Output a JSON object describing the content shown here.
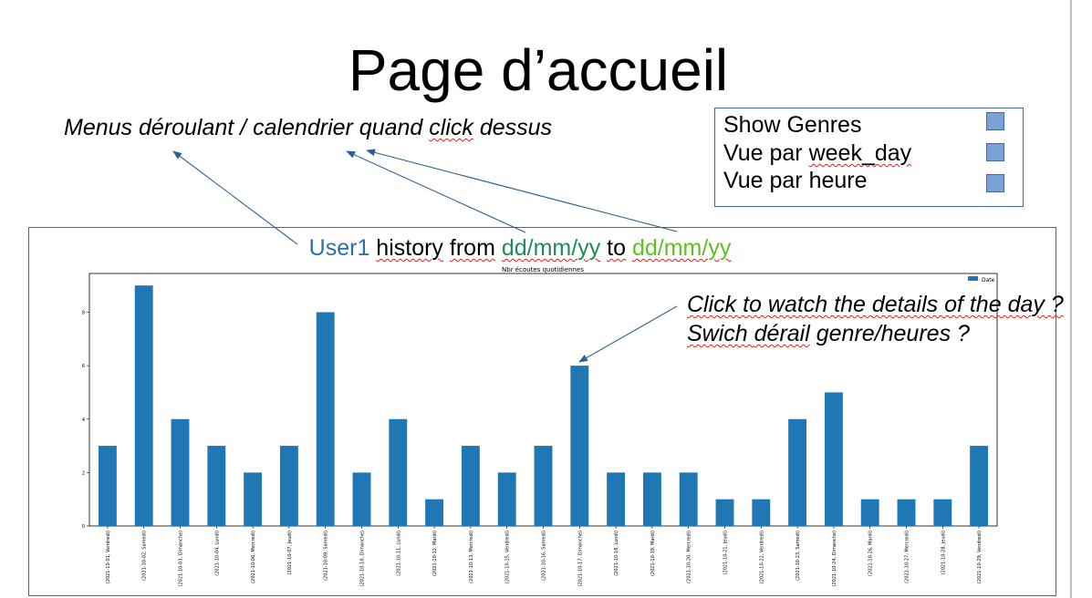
{
  "title": "Page d’accueil",
  "menus_note": {
    "before": "Menus déroulant / calendrier quand ",
    "click": "click",
    "after": " dessus"
  },
  "options": [
    {
      "label_start": "Show Genres",
      "label_wavy": ""
    },
    {
      "label_start": "Vue par ",
      "label_wavy": "week_day"
    },
    {
      "label_start": "Vue par heure",
      "label_wavy": ""
    }
  ],
  "history": {
    "user": "User1",
    "history_word": "history",
    "from_word": "from",
    "date_from": "dd/mm/yy",
    "to_word": "to",
    "date_to": "dd/mm/yy"
  },
  "details_note": {
    "line1": "Click to watch the details of the day ?",
    "line2_start": "Swich ",
    "line2_wavy": "dérail",
    "line2_end": " genre/heures ?"
  },
  "colors": {
    "user": "#2e6fa7",
    "date_from": "#1f8a5a",
    "date_to": "#62c022",
    "bar": "#1f77b4",
    "frame": "#3a6b9c",
    "arrow": "#2f5f94"
  },
  "chart_data": {
    "type": "bar",
    "title": "Nbr écoutes quotidiennes",
    "legend": "Date",
    "legend_position": "top-right",
    "ylim": [
      0,
      9.45
    ],
    "yticks": [
      0,
      2,
      4,
      6,
      8
    ],
    "categories": [
      "(2021-10-01, Vendredi)",
      "(2021-10-02, Samedi)",
      "(2021-10-03, Dimanche)",
      "(2021-10-04, Lundi)",
      "(2021-10-06, Mercredi)",
      "(2021-10-07, Jeudi)",
      "(2021-10-09, Samedi)",
      "(2021-10-10, Dimanche)",
      "(2021-10-11, Lundi)",
      "(2021-10-12, Mardi)",
      "(2021-10-13, Mercredi)",
      "(2021-10-15, Vendredi)",
      "(2021-10-16, Samedi)",
      "(2021-10-17, Dimanche)",
      "(2021-10-18, Lundi)",
      "(2021-10-19, Mardi)",
      "(2021-10-20, Mercredi)",
      "(2021-10-21, Jeudi)",
      "(2021-10-22, Vendredi)",
      "(2021-10-23, Samedi)",
      "(2021-10-24, Dimanche)",
      "(2021-10-26, Mardi)",
      "(2021-10-27, Mercredi)",
      "(2021-10-28, Jeudi)",
      "(2021-10-29, Vendredi)"
    ],
    "values": [
      3,
      9,
      4,
      3,
      2,
      3,
      8,
      2,
      4,
      1,
      3,
      2,
      3,
      6,
      2,
      2,
      2,
      1,
      1,
      4,
      5,
      1,
      1,
      1,
      3
    ]
  }
}
